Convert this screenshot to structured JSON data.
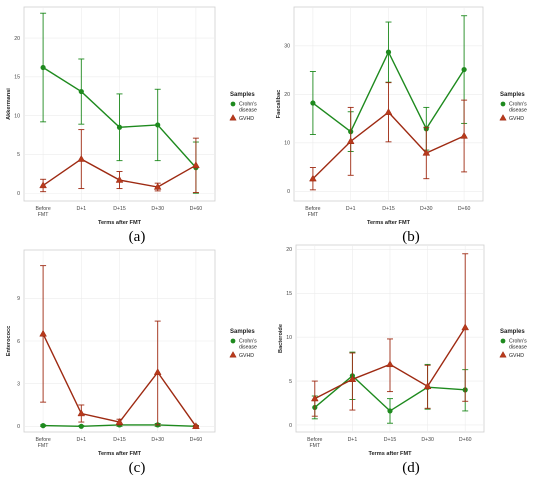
{
  "colors": {
    "crohns": "#1e8a1e",
    "gvhd": "#9e2a12",
    "marker_gvhd_fill": "#b83a1c"
  },
  "chart_data": [
    {
      "type": "line",
      "panel_label": "(a)",
      "xlabel": "Terms after FMT",
      "ylabel": "Akkermansi",
      "categories": [
        "Before\nFMT",
        "D+1",
        "D+15",
        "D+30",
        "D+60"
      ],
      "ylim": [
        -1,
        24
      ],
      "yticks": [
        0,
        5,
        10,
        15,
        20
      ],
      "legend": {
        "title": "Samples",
        "placement": "right",
        "entries": [
          "Crohn's\ndisease",
          "GVHD"
        ]
      },
      "series": [
        {
          "name": "Crohn's disease",
          "color": "#1e8a1e",
          "marker": "circle",
          "values": [
            16.2,
            13.1,
            8.5,
            8.8,
            3.3
          ],
          "err_low": [
            9.2,
            8.9,
            4.2,
            4.2,
            0.0
          ],
          "err_high": [
            23.2,
            17.3,
            12.8,
            13.4,
            6.6
          ]
        },
        {
          "name": "GVHD",
          "color": "#9e2a12",
          "marker": "triangle",
          "values": [
            1.0,
            4.4,
            1.7,
            0.8,
            3.6
          ],
          "err_low": [
            0.2,
            0.6,
            0.6,
            0.3,
            0.1
          ],
          "err_high": [
            1.8,
            8.2,
            2.8,
            1.3,
            7.1
          ]
        }
      ],
      "grid": true
    },
    {
      "type": "line",
      "panel_label": "(b)",
      "xlabel": "Terms after FMT",
      "ylabel": "Faecalibac",
      "categories": [
        "Before\nFMT",
        "D+1",
        "D+15",
        "D+30",
        "D+60"
      ],
      "ylim": [
        -2,
        38
      ],
      "yticks": [
        0,
        10,
        20,
        30
      ],
      "legend": {
        "title": "Samples",
        "placement": "right",
        "entries": [
          "Crohn's\ndisease",
          "GVHD"
        ]
      },
      "series": [
        {
          "name": "Crohn's disease",
          "color": "#1e8a1e",
          "marker": "circle",
          "values": [
            18.2,
            12.3,
            28.7,
            12.9,
            25.1
          ],
          "err_low": [
            11.7,
            8.2,
            22.5,
            8.5,
            14.0
          ],
          "err_high": [
            24.7,
            16.4,
            34.9,
            17.3,
            36.2
          ]
        },
        {
          "name": "GVHD",
          "color": "#9e2a12",
          "marker": "triangle",
          "values": [
            2.6,
            10.3,
            16.3,
            7.9,
            11.4
          ],
          "err_low": [
            0.3,
            3.3,
            10.2,
            2.6,
            4.0
          ],
          "err_high": [
            4.9,
            17.3,
            22.4,
            13.2,
            18.8
          ]
        }
      ],
      "grid": true
    },
    {
      "type": "line",
      "panel_label": "(c)",
      "xlabel": "Terms after FMT",
      "ylabel": "Enterococc",
      "categories": [
        "Before\nFMT",
        "D+1",
        "D+15",
        "D+30",
        "D+60"
      ],
      "ylim": [
        -0.4,
        12.4
      ],
      "yticks": [
        0,
        3,
        6,
        9
      ],
      "legend": {
        "title": "Samples",
        "placement": "right",
        "entries": [
          "Crohn's\ndisease",
          "GVHD"
        ]
      },
      "series": [
        {
          "name": "Crohn's disease",
          "color": "#1e8a1e",
          "marker": "circle",
          "values": [
            0.05,
            0.0,
            0.1,
            0.1,
            0.0
          ],
          "err_low": [
            0.0,
            0.0,
            0.0,
            0.0,
            0.0
          ],
          "err_high": [
            0.1,
            0.05,
            0.2,
            0.2,
            0.05
          ]
        },
        {
          "name": "GVHD",
          "color": "#9e2a12",
          "marker": "triangle",
          "values": [
            6.5,
            0.9,
            0.3,
            3.8,
            0.0
          ],
          "err_low": [
            1.7,
            0.3,
            0.1,
            0.1,
            0.0
          ],
          "err_high": [
            11.3,
            1.5,
            0.5,
            7.4,
            0.05
          ]
        }
      ],
      "grid": true
    },
    {
      "type": "line",
      "panel_label": "(d)",
      "xlabel": "Terms after FMT",
      "ylabel": "Bacteroide",
      "categories": [
        "Before\nFMT",
        "D+1",
        "D+15",
        "D+30",
        "D+60"
      ],
      "ylim": [
        -0.8,
        20.5
      ],
      "yticks": [
        0,
        5,
        10,
        15,
        20
      ],
      "legend": {
        "title": "Samples",
        "placement": "right",
        "entries": [
          "Crohn's\ndisease",
          "GVHD"
        ]
      },
      "series": [
        {
          "name": "Crohn's disease",
          "color": "#1e8a1e",
          "marker": "circle",
          "values": [
            2.0,
            5.6,
            1.6,
            4.3,
            4.0
          ],
          "err_low": [
            0.7,
            2.9,
            0.2,
            1.8,
            1.6
          ],
          "err_high": [
            3.3,
            8.3,
            3.0,
            6.9,
            6.3
          ]
        },
        {
          "name": "GVHD",
          "color": "#9e2a12",
          "marker": "triangle",
          "values": [
            3.0,
            5.2,
            6.9,
            4.4,
            11.1
          ],
          "err_low": [
            1.0,
            1.7,
            3.8,
            1.9,
            2.7
          ],
          "err_high": [
            5.0,
            8.2,
            9.8,
            6.8,
            19.5
          ]
        }
      ],
      "grid": true
    }
  ]
}
